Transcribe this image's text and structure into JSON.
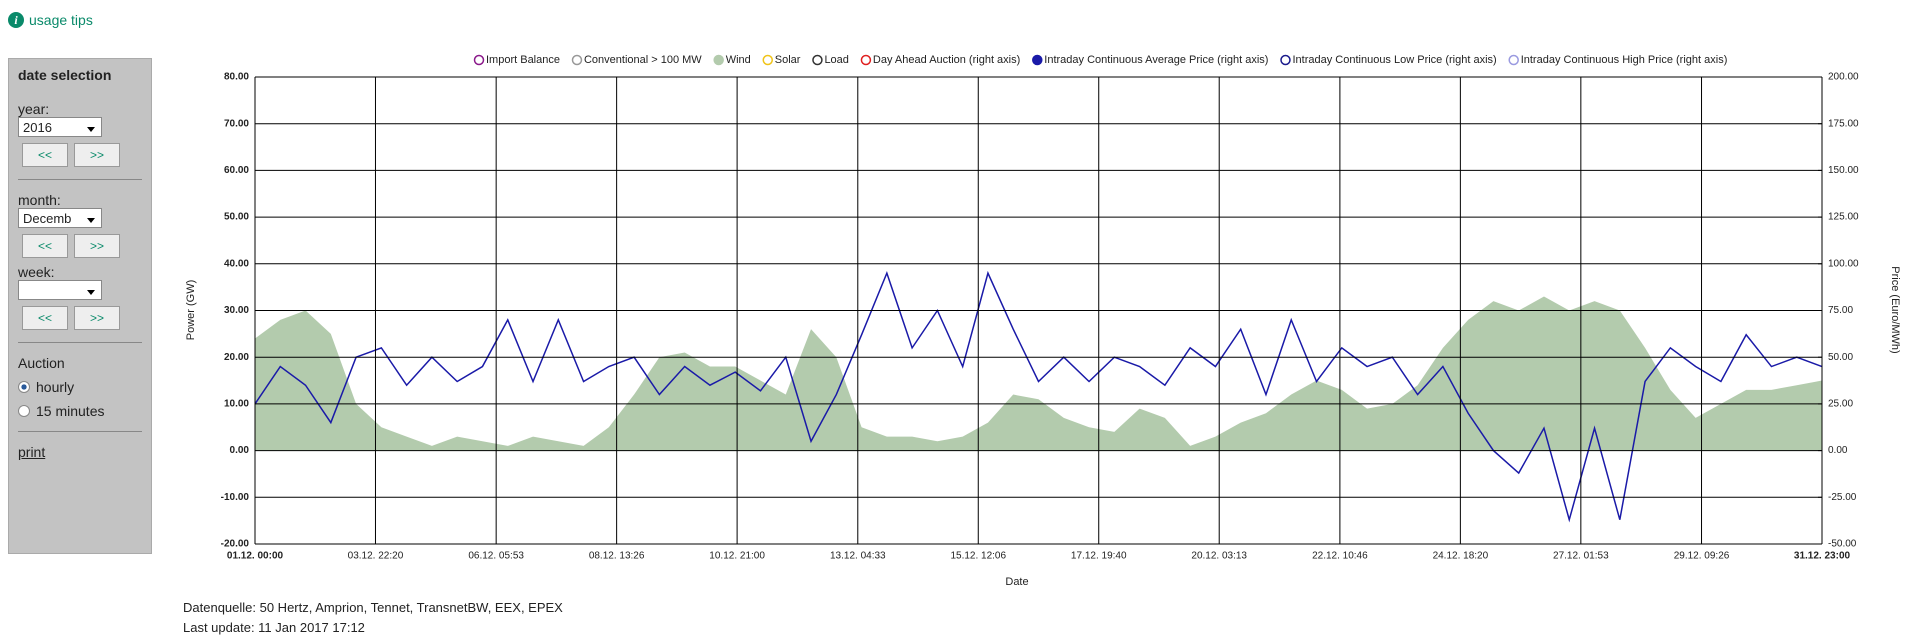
{
  "header": {
    "link": "usage tips"
  },
  "sidebar": {
    "title": "date selection",
    "year_label": "year:",
    "year": "2016",
    "prev": "<<",
    "next": ">>",
    "month_label": "month:",
    "month": "Decemb",
    "week_label": "week:",
    "auction_label": "Auction",
    "options": [
      "hourly",
      "15 minutes"
    ],
    "print": "print"
  },
  "chart_data": {
    "type": "line",
    "x_label": "Date",
    "y_label": "Power (GW)",
    "y2_label": "Price (Euro/MWh)",
    "x": [
      0,
      12,
      24,
      36,
      48,
      60,
      72,
      84,
      96,
      108,
      120,
      132,
      144,
      156,
      168,
      180,
      192,
      204,
      216,
      228,
      240,
      252,
      264,
      276,
      288,
      300,
      312,
      324,
      336,
      348,
      360,
      372,
      384,
      396,
      408,
      420,
      432,
      444,
      456,
      468,
      480,
      492,
      504,
      516,
      528,
      540,
      552,
      564,
      576,
      588,
      600,
      612,
      624,
      636,
      648,
      660,
      672,
      684,
      696,
      708,
      720,
      732,
      744
    ],
    "xlim": [
      0,
      744
    ],
    "xticks": [
      {
        "value": 0,
        "label": "01.12. 00:00"
      },
      {
        "value": 57.2,
        "label": "03.12. 22:20"
      },
      {
        "value": 114.5,
        "label": "06.12. 05:53"
      },
      {
        "value": 171.7,
        "label": "08.12. 13:26"
      },
      {
        "value": 228.9,
        "label": "10.12. 21:00"
      },
      {
        "value": 286.2,
        "label": "13.12. 04:33"
      },
      {
        "value": 343.4,
        "label": "15.12. 12:06"
      },
      {
        "value": 400.6,
        "label": "17.12. 19:40"
      },
      {
        "value": 457.8,
        "label": "20.12. 03:13"
      },
      {
        "value": 515.1,
        "label": "22.12. 10:46"
      },
      {
        "value": 572.3,
        "label": "24.12. 18:20"
      },
      {
        "value": 629.5,
        "label": "27.12. 01:53"
      },
      {
        "value": 686.8,
        "label": "29.12. 09:26"
      },
      {
        "value": 744,
        "label": "31.12. 23:00"
      }
    ],
    "ylim": [
      -20,
      80
    ],
    "yticks": [
      {
        "value": 80,
        "label": "80.00"
      },
      {
        "value": 70,
        "label": "70.00"
      },
      {
        "value": 60,
        "label": "60.00"
      },
      {
        "value": 50,
        "label": "50.00"
      },
      {
        "value": 40,
        "label": "40.00"
      },
      {
        "value": 30,
        "label": "30.00"
      },
      {
        "value": 20,
        "label": "20.00"
      },
      {
        "value": 10,
        "label": "10.00"
      },
      {
        "value": 0,
        "label": "0.00"
      },
      {
        "value": -10,
        "label": "-10.00"
      },
      {
        "value": -20,
        "label": "-20.00"
      }
    ],
    "y2lim": [
      -50,
      200
    ],
    "y2ticks": [
      {
        "value": 200,
        "label": "200.00"
      },
      {
        "value": 175,
        "label": "175.00"
      },
      {
        "value": 150,
        "label": "150.00"
      },
      {
        "value": 125,
        "label": "125.00"
      },
      {
        "value": 100,
        "label": "100.00"
      },
      {
        "value": 75,
        "label": "75.00"
      },
      {
        "value": 50,
        "label": "50.00"
      },
      {
        "value": 25,
        "label": "25.00"
      },
      {
        "value": 0,
        "label": "0.00"
      },
      {
        "value": -25,
        "label": "-25.00"
      },
      {
        "value": -50,
        "label": "-50.00"
      }
    ],
    "grid": true,
    "series": [
      {
        "name": "Import Balance",
        "color": "#8b1a8b",
        "filled": false
      },
      {
        "name": "Conventional > 100 MW",
        "color": "#999999",
        "filled": false
      },
      {
        "name": "Wind",
        "color": "#b3cbad",
        "filled": true,
        "style": "area",
        "values": [
          24,
          28,
          30,
          25,
          10,
          5,
          3,
          1,
          3,
          2,
          1,
          3,
          2,
          1,
          5,
          12,
          20,
          21,
          18,
          18,
          15,
          12,
          26,
          20,
          5,
          3,
          3,
          2,
          3,
          6,
          12,
          11,
          7,
          5,
          4,
          9,
          7,
          1,
          3,
          6,
          8,
          12,
          15,
          13,
          9,
          10,
          14,
          22,
          28,
          32,
          30,
          33,
          30,
          32,
          30,
          22,
          13,
          7,
          10,
          13,
          13,
          14,
          15
        ]
      },
      {
        "name": "Solar",
        "color": "#f0c419",
        "filled": false
      },
      {
        "name": "Load",
        "color": "#333333",
        "filled": false
      },
      {
        "name": "Day Ahead Auction (right axis)",
        "color": "#e02020",
        "filled": false
      },
      {
        "name": "Intraday Continuous Average Price (right axis)",
        "color": "#1a1aa8",
        "filled": true,
        "style": "line",
        "axis": "y2",
        "values": [
          25,
          45,
          35,
          15,
          50,
          55,
          35,
          50,
          37,
          45,
          70,
          37,
          70,
          37,
          45,
          50,
          30,
          45,
          35,
          42,
          32,
          50,
          5,
          30,
          62,
          95,
          55,
          75,
          45,
          95,
          65,
          37,
          50,
          37,
          50,
          45,
          35,
          55,
          45,
          65,
          30,
          70,
          37,
          55,
          45,
          50,
          30,
          45,
          20,
          0,
          -12,
          12,
          -37,
          12,
          -37,
          37,
          55,
          45,
          37,
          62,
          45,
          50,
          45
        ]
      },
      {
        "name": "Intraday Continuous Low Price (right axis)",
        "color": "#1a1a8c",
        "filled": false
      },
      {
        "name": "Intraday Continuous High Price (right axis)",
        "color": "#9a9ae0",
        "filled": false
      }
    ]
  },
  "footer": {
    "source": "Datenquelle: 50 Hertz, Amprion, Tennet, TransnetBW, EEX, EPEX",
    "update": "Last update: 11 Jan 2017 17:12"
  }
}
